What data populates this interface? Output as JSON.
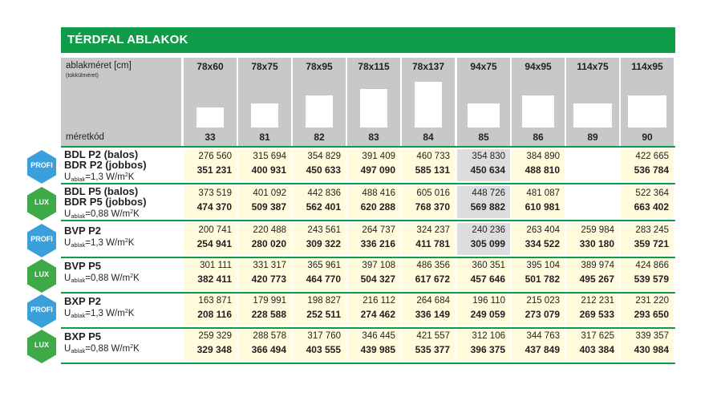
{
  "title": "TÉRDFAL ABLAKOK",
  "header": {
    "label1": "ablakméret [cm]",
    "label2": "(tokkülméret)",
    "label3": "méretkód",
    "columns": [
      {
        "size": "78x60",
        "code": "33"
      },
      {
        "size": "78x75",
        "code": "81"
      },
      {
        "size": "78x95",
        "code": "82"
      },
      {
        "size": "78x115",
        "code": "83"
      },
      {
        "size": "78x137",
        "code": "84"
      },
      {
        "size": "94x75",
        "code": "85"
      },
      {
        "size": "94x95",
        "code": "86"
      },
      {
        "size": "114x75",
        "code": "89"
      },
      {
        "size": "114x95",
        "code": "90"
      }
    ]
  },
  "rows": [
    {
      "badge": "PROFI",
      "badge_color": "#3aa0db",
      "names": [
        "BDL P2 (balos)",
        "BDR P2 (jobbos)"
      ],
      "u_prefix": "U",
      "u_sub": "ablak",
      "u_value": "=1,3 W/m",
      "u_sup": "2",
      "u_suffix": "K",
      "cells": [
        [
          "276 560",
          "351 231"
        ],
        [
          "315 694",
          "400 931"
        ],
        [
          "354 829",
          "450 633"
        ],
        [
          "391 409",
          "497 090"
        ],
        [
          "460 733",
          "585 131"
        ],
        [
          "354 830",
          "450 634"
        ],
        [
          "384 890",
          "488 810"
        ],
        [
          "",
          ""
        ],
        [
          "422 665",
          "536 784"
        ]
      ]
    },
    {
      "badge": "LUX",
      "badge_color": "#3daa47",
      "names": [
        "BDL P5 (balos)",
        "BDR P5 (jobbos)"
      ],
      "u_prefix": "U",
      "u_sub": "ablak",
      "u_value": "=0,88 W/m",
      "u_sup": "2",
      "u_suffix": "K",
      "cells": [
        [
          "373 519",
          "474 370"
        ],
        [
          "401 092",
          "509 387"
        ],
        [
          "442 836",
          "562 401"
        ],
        [
          "488 416",
          "620 288"
        ],
        [
          "605 016",
          "768 370"
        ],
        [
          "448 726",
          "569 882"
        ],
        [
          "481 087",
          "610 981"
        ],
        [
          "",
          ""
        ],
        [
          "522 364",
          "663 402"
        ]
      ]
    },
    {
      "badge": "PROFI",
      "badge_color": "#3aa0db",
      "names": [
        "BVP P2"
      ],
      "u_prefix": "U",
      "u_sub": "ablak",
      "u_value": "=1,3 W/m",
      "u_sup": "2",
      "u_suffix": "K",
      "cells": [
        [
          "200 741",
          "254 941"
        ],
        [
          "220 488",
          "280 020"
        ],
        [
          "243 561",
          "309 322"
        ],
        [
          "264 737",
          "336 216"
        ],
        [
          "324 237",
          "411 781"
        ],
        [
          "240 236",
          "305 099"
        ],
        [
          "263 404",
          "334 522"
        ],
        [
          "259 984",
          "330 180"
        ],
        [
          "283 245",
          "359 721"
        ]
      ]
    },
    {
      "badge": "LUX",
      "badge_color": "#3daa47",
      "names": [
        "BVP P5"
      ],
      "u_prefix": "U",
      "u_sub": "ablak",
      "u_value": "=0,88 W/m",
      "u_sup": "2",
      "u_suffix": "K",
      "cells": [
        [
          "301 111",
          "382 411"
        ],
        [
          "331 317",
          "420 773"
        ],
        [
          "365 961",
          "464 770"
        ],
        [
          "397 108",
          "504 327"
        ],
        [
          "486 356",
          "617 672"
        ],
        [
          "360 351",
          "457 646"
        ],
        [
          "395 104",
          "501 782"
        ],
        [
          "389 974",
          "495 267"
        ],
        [
          "424 866",
          "539 579"
        ]
      ]
    },
    {
      "badge": "PROFI",
      "badge_color": "#3aa0db",
      "names": [
        "BXP P2"
      ],
      "u_prefix": "U",
      "u_sub": "ablak",
      "u_value": "=1,3 W/m",
      "u_sup": "2",
      "u_suffix": "K",
      "cells": [
        [
          "163 871",
          "208 116"
        ],
        [
          "179 991",
          "228 588"
        ],
        [
          "198 827",
          "252 511"
        ],
        [
          "216 112",
          "274 462"
        ],
        [
          "264 684",
          "336 149"
        ],
        [
          "196 110",
          "249 059"
        ],
        [
          "215 023",
          "273 079"
        ],
        [
          "212 231",
          "269 533"
        ],
        [
          "231 220",
          "293 650"
        ]
      ]
    },
    {
      "badge": "LUX",
      "badge_color": "#3daa47",
      "names": [
        "BXP P5"
      ],
      "u_prefix": "U",
      "u_sub": "ablak",
      "u_value": "=0,88 W/m",
      "u_sup": "2",
      "u_suffix": "K",
      "cells": [
        [
          "259 329",
          "329 348"
        ],
        [
          "288 578",
          "366 494"
        ],
        [
          "317 760",
          "403 555"
        ],
        [
          "346 445",
          "439 985"
        ],
        [
          "421 557",
          "535 377"
        ],
        [
          "312 106",
          "396 375"
        ],
        [
          "344 763",
          "437 849"
        ],
        [
          "317 625",
          "403 384"
        ],
        [
          "339 357",
          "430 984"
        ]
      ]
    }
  ]
}
